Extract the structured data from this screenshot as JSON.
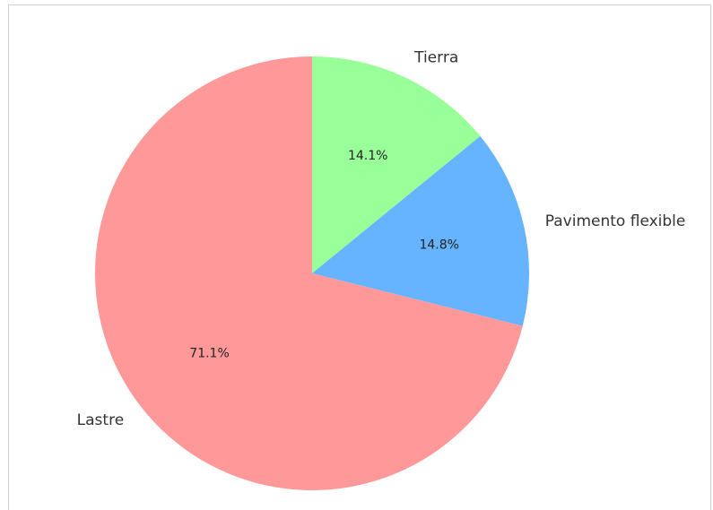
{
  "chart_data": {
    "type": "pie",
    "title": "",
    "slices": [
      {
        "label": "Tierra",
        "value": 14.1,
        "pct_label": "14.1%",
        "color": "#99ff99"
      },
      {
        "label": "Pavimento flexible",
        "value": 14.8,
        "pct_label": "14.8%",
        "color": "#66b3ff"
      },
      {
        "label": "Lastre",
        "value": 71.1,
        "pct_label": "71.1%",
        "color": "#ff9999"
      }
    ],
    "start_angle": "90° (top), clockwise",
    "legend": "none"
  }
}
